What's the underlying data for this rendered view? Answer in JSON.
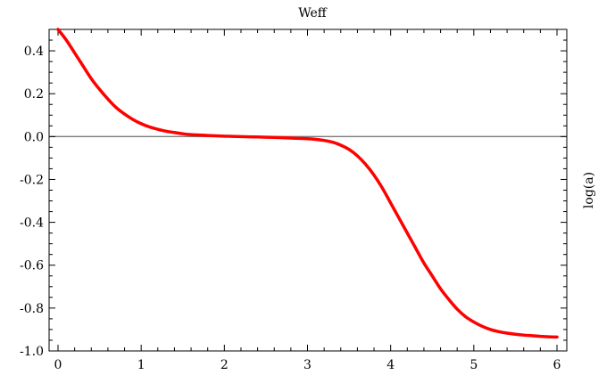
{
  "chart_data": {
    "type": "line",
    "title": "Weff",
    "xlabel": "",
    "ylabel": "log(a)",
    "xlim": [
      0,
      6
    ],
    "ylim": [
      -1.0,
      0.5
    ],
    "x_ticks": [
      "0",
      "1",
      "2",
      "3",
      "4",
      "5",
      "6"
    ],
    "y_ticks": [
      "0.4",
      "0.2",
      "0.0",
      "-0.2",
      "-0.4",
      "-0.6",
      "-0.8",
      "-1.0"
    ],
    "reference_line_y": 0.0,
    "grid": false,
    "series": [
      {
        "color": "#ff0000",
        "x": [
          0.0,
          0.1,
          0.2,
          0.3,
          0.4,
          0.5,
          0.6,
          0.7,
          0.8,
          0.9,
          1.0,
          1.1,
          1.2,
          1.3,
          1.4,
          1.5,
          1.6,
          1.8,
          2.0,
          2.2,
          2.4,
          2.6,
          2.8,
          3.0,
          3.1,
          3.2,
          3.3,
          3.4,
          3.5,
          3.6,
          3.7,
          3.8,
          3.9,
          4.0,
          4.1,
          4.2,
          4.3,
          4.4,
          4.5,
          4.6,
          4.7,
          4.8,
          4.9,
          5.0,
          5.1,
          5.2,
          5.3,
          5.4,
          5.5,
          5.6,
          5.7,
          5.8,
          5.9,
          6.0
        ],
        "y": [
          0.5,
          0.45,
          0.39,
          0.33,
          0.27,
          0.22,
          0.175,
          0.135,
          0.105,
          0.08,
          0.06,
          0.045,
          0.034,
          0.025,
          0.019,
          0.013,
          0.009,
          0.005,
          0.002,
          0.0,
          -0.002,
          -0.004,
          -0.007,
          -0.01,
          -0.013,
          -0.018,
          -0.026,
          -0.04,
          -0.06,
          -0.09,
          -0.13,
          -0.18,
          -0.24,
          -0.31,
          -0.38,
          -0.45,
          -0.52,
          -0.59,
          -0.65,
          -0.71,
          -0.76,
          -0.805,
          -0.84,
          -0.865,
          -0.885,
          -0.9,
          -0.91,
          -0.917,
          -0.922,
          -0.926,
          -0.929,
          -0.932,
          -0.934,
          -0.935
        ]
      }
    ]
  }
}
